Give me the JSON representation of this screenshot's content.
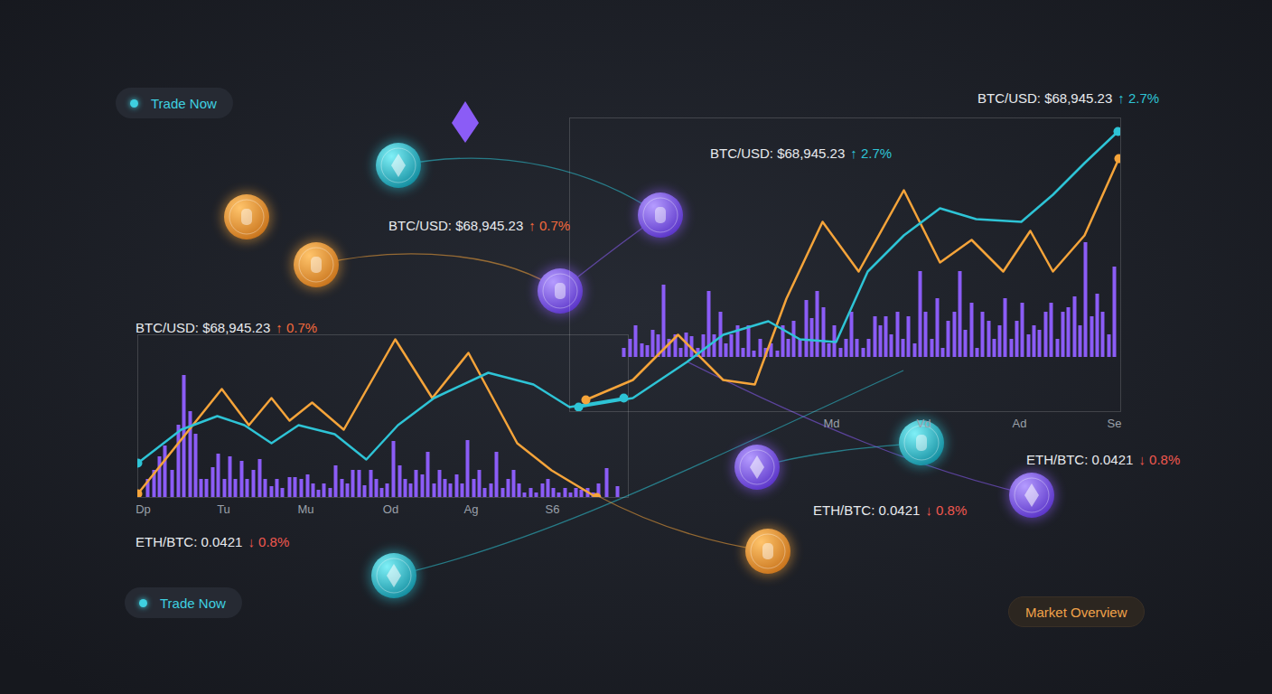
{
  "chart_data": [
    {
      "type": "bar",
      "xlim": [
        0,
        543
      ],
      "ylim": [
        0,
        180
      ],
      "xticks": [
        {
          "value": 6,
          "label": "Dp"
        },
        {
          "value": 95,
          "label": "Tu"
        },
        {
          "value": 186,
          "label": "Mu"
        },
        {
          "value": 280,
          "label": "Od"
        },
        {
          "value": 369,
          "label": "Ag"
        },
        {
          "value": 459,
          "label": "S6"
        }
      ],
      "yticks": [],
      "grid": false,
      "tick_labels": "x",
      "series": [
        {
          "color": "#8b5cf6",
          "x": [
            11,
            18,
            24,
            30,
            38,
            45,
            51,
            58,
            64,
            70,
            76,
            83,
            89,
            96,
            102,
            108,
            115,
            121,
            128,
            135,
            141,
            148,
            154,
            160,
            168,
            174,
            181,
            188,
            194,
            200,
            206,
            213,
            219,
            226,
            232,
            238,
            245,
            251,
            258,
            264,
            270,
            276,
            283,
            290,
            296,
            302,
            308,
            315,
            321,
            328,
            334,
            340,
            346,
            353,
            359,
            365,
            372,
            378,
            384,
            391,
            397,
            404,
            410,
            416,
            422,
            428,
            435,
            441,
            448,
            454,
            460,
            466,
            473,
            479,
            485,
            491,
            498,
            504,
            510,
            519,
            531
          ],
          "values": [
            20,
            30,
            45,
            57,
            30,
            80,
            135,
            95,
            70,
            20,
            20,
            33,
            48,
            20,
            45,
            20,
            40,
            20,
            30,
            42,
            20,
            12,
            20,
            10,
            22,
            22,
            20,
            25,
            15,
            8,
            15,
            10,
            35,
            20,
            15,
            30,
            30,
            13,
            30,
            20,
            10,
            15,
            62,
            35,
            20,
            15,
            30,
            25,
            50,
            15,
            30,
            20,
            15,
            25,
            15,
            63,
            20,
            30,
            10,
            15,
            50,
            10,
            20,
            30,
            15,
            5,
            10,
            5,
            15,
            20,
            10,
            5,
            10,
            5,
            10,
            8,
            10,
            5,
            15,
            32,
            12
          ]
        },
        {
          "type": "line",
          "color": "#f5a43a",
          "marker": "circle",
          "x": [
            0,
            93,
            123,
            148,
            168,
            193,
            228,
            285,
            326,
            366,
            420,
            458,
            508
          ],
          "values": [
            4,
            120,
            80,
            110,
            85,
            105,
            75,
            175,
            110,
            160,
            60,
            30,
            0
          ]
        },
        {
          "type": "line",
          "color": "#2ec4d6",
          "marker": "circle",
          "x": [
            0,
            48,
            88,
            118,
            148,
            178,
            218,
            253,
            288,
            328,
            388,
            438,
            478,
            508,
            538
          ],
          "values": [
            38,
            75,
            90,
            80,
            60,
            80,
            70,
            42,
            80,
            110,
            138,
            125,
            100,
            105,
            110
          ]
        }
      ]
    },
    {
      "type": "bar",
      "xlim": [
        0,
        610
      ],
      "ylim": [
        -60,
        265
      ],
      "xticks": [
        {
          "value": 290,
          "label": "Md"
        },
        {
          "value": 392,
          "label": "Vd"
        },
        {
          "value": 498,
          "label": "Ad"
        },
        {
          "value": 603,
          "label": "Se"
        }
      ],
      "yticks": [],
      "grid": false,
      "tick_labels": "x",
      "series": [
        {
          "color": "#8b5cf6",
          "x": [
            60,
            67,
            73,
            80,
            86,
            92,
            98,
            104,
            110,
            117,
            123,
            129,
            135,
            142,
            148,
            154,
            160,
            167,
            173,
            179,
            186,
            192,
            198,
            204,
            211,
            217,
            223,
            230,
            236,
            242,
            248,
            255,
            262,
            268,
            274,
            281,
            287,
            293,
            300,
            306,
            312,
            318,
            325,
            331,
            338,
            344,
            350,
            356,
            363,
            369,
            375,
            382,
            388,
            394,
            401,
            407,
            413,
            419,
            426,
            432,
            438,
            445,
            451,
            457,
            464,
            470,
            476,
            482,
            489,
            495,
            501,
            508,
            514,
            520,
            527,
            533,
            540,
            546,
            552,
            559,
            565,
            571,
            578,
            584,
            590,
            597,
            603
          ],
          "values": [
            10,
            20,
            35,
            15,
            13,
            30,
            25,
            80,
            20,
            25,
            10,
            27,
            23,
            10,
            25,
            73,
            25,
            50,
            15,
            25,
            35,
            10,
            35,
            7,
            20,
            10,
            15,
            7,
            35,
            20,
            40,
            20,
            63,
            43,
            73,
            55,
            15,
            35,
            10,
            20,
            50,
            20,
            10,
            20,
            45,
            35,
            45,
            25,
            50,
            20,
            45,
            15,
            95,
            50,
            20,
            65,
            10,
            40,
            50,
            95,
            30,
            60,
            10,
            50,
            40,
            20,
            35,
            65,
            20,
            40,
            60,
            25,
            35,
            30,
            50,
            60,
            20,
            50,
            55,
            67,
            35,
            127,
            45,
            70,
            50,
            25,
            100
          ]
        },
        {
          "type": "line",
          "color": "#f5a43a",
          "marker": "circle",
          "x": [
            18,
            70,
            120,
            170,
            205,
            240,
            280,
            320,
            370,
            410,
            445,
            480,
            510,
            535,
            570,
            608
          ],
          "values": [
            -47,
            -25,
            25,
            -25,
            -30,
            65,
            150,
            95,
            185,
            105,
            130,
            95,
            140,
            95,
            135,
            220
          ]
        },
        {
          "type": "line",
          "color": "#2ec4d6",
          "marker": "circle",
          "x": [
            10,
            70,
            130,
            170,
            220,
            255,
            295,
            330,
            370,
            410,
            450,
            500,
            535,
            570,
            607
          ],
          "values": [
            -55,
            -45,
            -5,
            25,
            40,
            20,
            17,
            95,
            135,
            165,
            153,
            150,
            180,
            215,
            250
          ]
        }
      ]
    }
  ],
  "overlay": {
    "buttons": [
      "Trade Now",
      "Trade Now"
    ],
    "badge": "Market Overview",
    "tickers": [
      {
        "text": "BTC/USD: $68,945.23",
        "change": "↑ 2.7%",
        "color": "#2ec4d6"
      },
      {
        "text": "BTC/USD: $68,945.23",
        "change": "↑ 2.7%",
        "color": "#2ec4d6"
      },
      {
        "text": "BTC/USD: $68,945.23",
        "change": "↑ 0.7%",
        "color": "#f26a3d"
      },
      {
        "text": "BTC/USD: $68,945.23",
        "change": "↑ 0.7%",
        "color": "#f26a3d"
      },
      {
        "text": "ETH/BTC: 0.0421",
        "change": "↓ 0.8%",
        "color": "#f0584f"
      },
      {
        "text": "ETH/BTC: 0.0421",
        "change": "↓ 0.8%",
        "color": "#f0584f"
      },
      {
        "text": "ETH/BTC: 0.0421",
        "change": "↓ 0.8%",
        "color": "#f0584f"
      }
    ]
  }
}
